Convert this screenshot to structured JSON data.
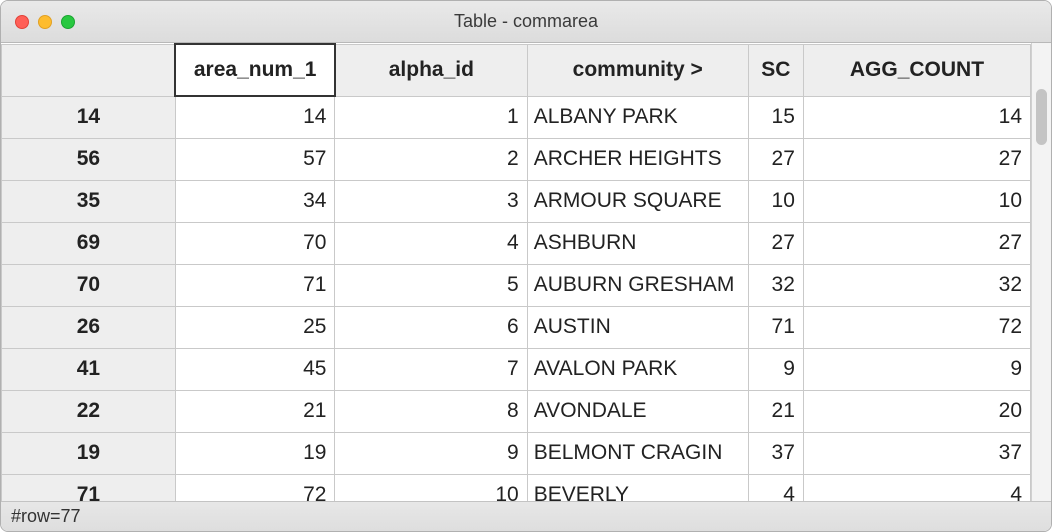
{
  "window": {
    "title": "Table - commarea"
  },
  "table": {
    "columns": [
      {
        "key": "rowid",
        "label": "",
        "cls": "col-rowhdr rowhdr",
        "align": "center"
      },
      {
        "key": "area_num_1",
        "label": "area_num_1",
        "cls": "col-area",
        "align": "right",
        "selected": true
      },
      {
        "key": "alpha_id",
        "label": "alpha_id",
        "cls": "col-alpha",
        "align": "right"
      },
      {
        "key": "community",
        "label": "community >",
        "cls": "col-comm",
        "align": "left"
      },
      {
        "key": "sc",
        "label": "SC",
        "cls": "col-sc",
        "align": "right"
      },
      {
        "key": "agg_count",
        "label": "AGG_COUNT",
        "cls": "col-agg",
        "align": "right"
      }
    ],
    "rows": [
      {
        "rowid": "14",
        "area_num_1": "14",
        "alpha_id": "1",
        "community": "ALBANY PARK",
        "sc": "15",
        "agg_count": "14"
      },
      {
        "rowid": "56",
        "area_num_1": "57",
        "alpha_id": "2",
        "community": "ARCHER HEIGHTS",
        "sc": "27",
        "agg_count": "27"
      },
      {
        "rowid": "35",
        "area_num_1": "34",
        "alpha_id": "3",
        "community": "ARMOUR SQUARE",
        "sc": "10",
        "agg_count": "10"
      },
      {
        "rowid": "69",
        "area_num_1": "70",
        "alpha_id": "4",
        "community": "ASHBURN",
        "sc": "27",
        "agg_count": "27"
      },
      {
        "rowid": "70",
        "area_num_1": "71",
        "alpha_id": "5",
        "community": "AUBURN GRESHAM",
        "sc": "32",
        "agg_count": "32"
      },
      {
        "rowid": "26",
        "area_num_1": "25",
        "alpha_id": "6",
        "community": "AUSTIN",
        "sc": "71",
        "agg_count": "72"
      },
      {
        "rowid": "41",
        "area_num_1": "45",
        "alpha_id": "7",
        "community": "AVALON PARK",
        "sc": "9",
        "agg_count": "9"
      },
      {
        "rowid": "22",
        "area_num_1": "21",
        "alpha_id": "8",
        "community": "AVONDALE",
        "sc": "21",
        "agg_count": "20"
      },
      {
        "rowid": "19",
        "area_num_1": "19",
        "alpha_id": "9",
        "community": "BELMONT CRAGIN",
        "sc": "37",
        "agg_count": "37"
      },
      {
        "rowid": "71",
        "area_num_1": "72",
        "alpha_id": "10",
        "community": "BEVERLY",
        "sc": "4",
        "agg_count": "4"
      }
    ]
  },
  "status": {
    "text": "#row=77"
  }
}
